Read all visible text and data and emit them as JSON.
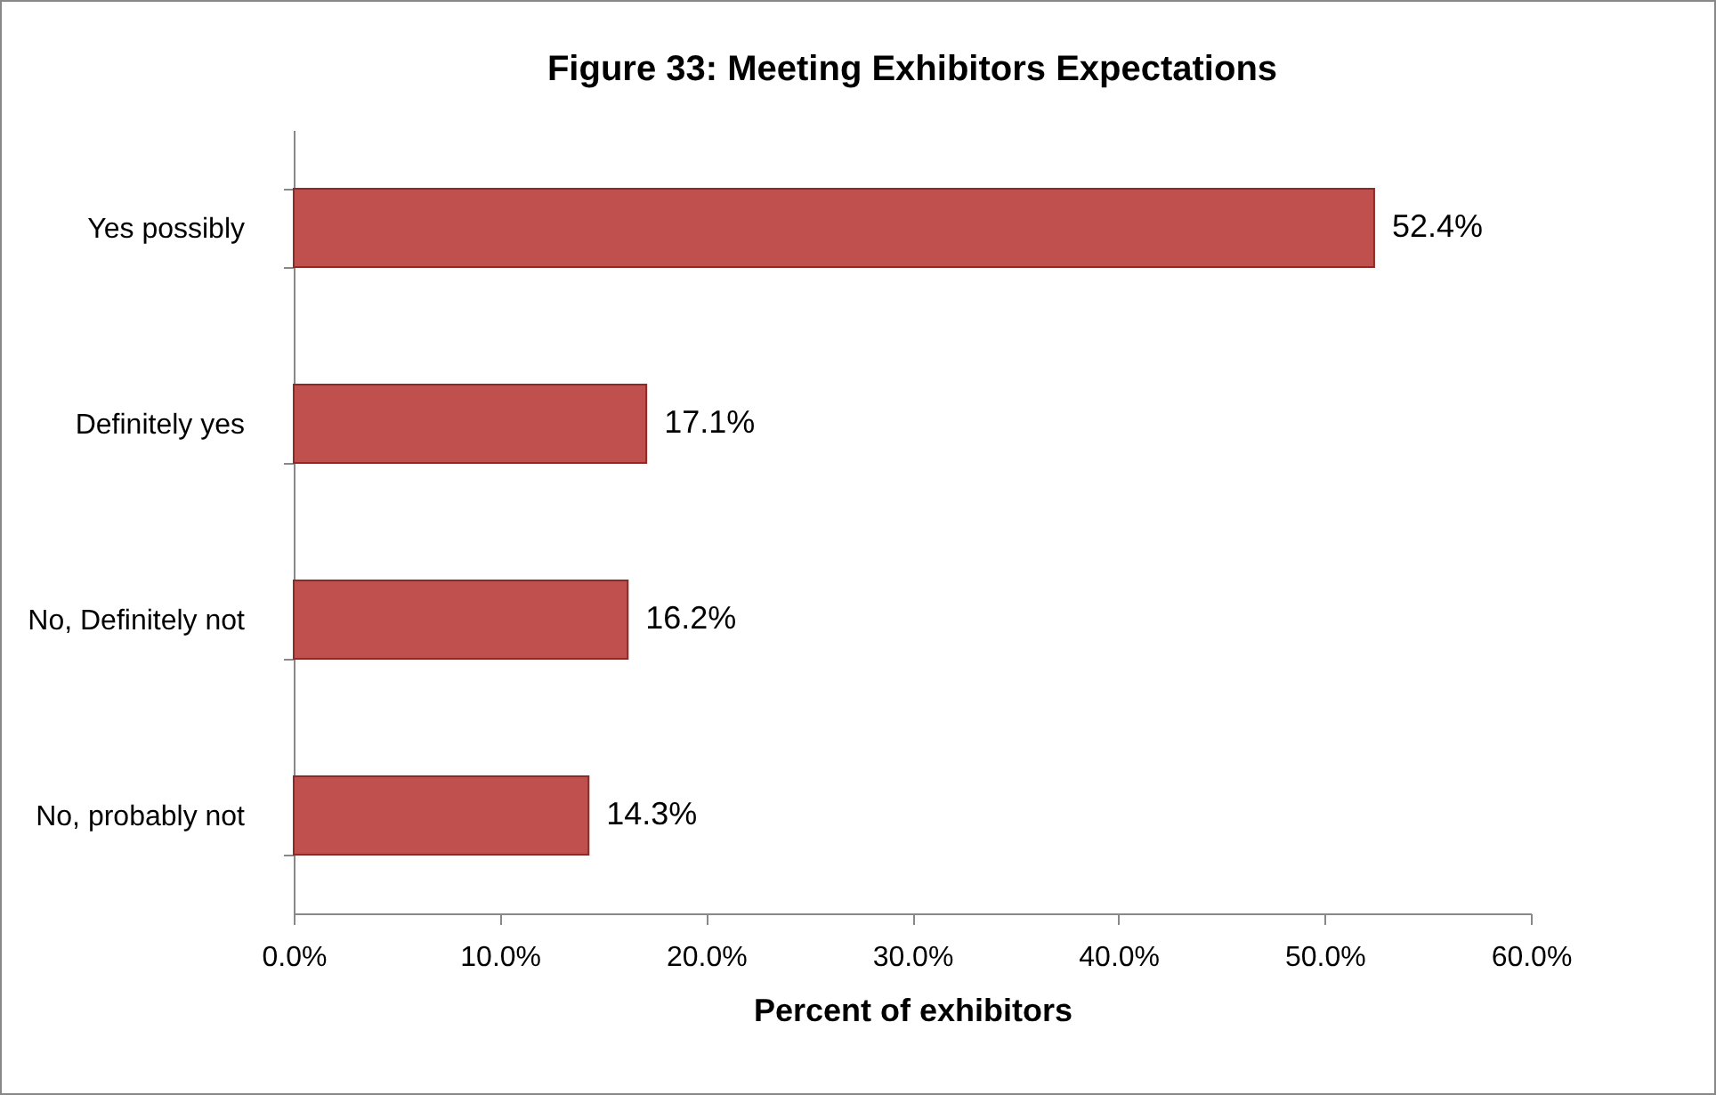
{
  "chart_data": {
    "type": "bar",
    "orientation": "horizontal",
    "title": "Figure 33: Meeting Exhibitors Expectations",
    "xlabel": "Percent of exhibitors",
    "categories": [
      "Yes possibly",
      "Definitely yes",
      "No, Definitely not",
      "No, probably not"
    ],
    "values": [
      52.4,
      17.1,
      16.2,
      14.3
    ],
    "value_labels": [
      "52.4%",
      "17.1%",
      "16.2%",
      "14.3%"
    ],
    "color": "#c0504d",
    "xlim": [
      0,
      60
    ],
    "xticks": [
      {
        "value": 0,
        "label": "0.0%"
      },
      {
        "value": 10,
        "label": "10.0%"
      },
      {
        "value": 20,
        "label": "20.0%"
      },
      {
        "value": 30,
        "label": "30.0%"
      },
      {
        "value": 40,
        "label": "40.0%"
      },
      {
        "value": 50,
        "label": "50.0%"
      },
      {
        "value": 60,
        "label": "60.0%"
      }
    ],
    "grid": false
  }
}
